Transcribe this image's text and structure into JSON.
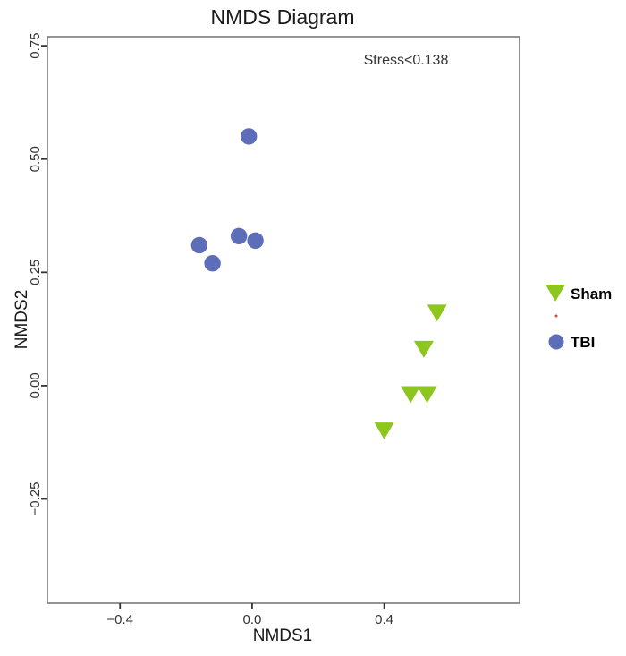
{
  "chart_data": {
    "type": "scatter",
    "title": "NMDS Diagram",
    "xlabel": "NMDS1",
    "ylabel": "NMDS2",
    "annotation": "Stress<0.138",
    "xlim": [
      -0.62,
      0.81
    ],
    "ylim": [
      -0.48,
      0.77
    ],
    "xticks": [
      -0.4,
      0,
      0.4
    ],
    "xtick_labels": [
      "−0.4",
      "0.0",
      "0.4"
    ],
    "yticks": [
      -0.25,
      0,
      0.25,
      0.5,
      0.75
    ],
    "ytick_labels": [
      "−0.25",
      "0.00",
      "0.25",
      "0.50",
      "0.75"
    ],
    "grid": false,
    "legend_position": "right",
    "series": [
      {
        "name": "Sham",
        "marker": "triangle-down",
        "color": "#8DC71E",
        "points": [
          [
            0.56,
            0.16
          ],
          [
            0.52,
            0.08
          ],
          [
            0.48,
            -0.02
          ],
          [
            0.53,
            -0.02
          ],
          [
            0.4,
            -0.1
          ]
        ]
      },
      {
        "name": "TBI",
        "marker": "circle",
        "color": "#5D6DB8",
        "points": [
          [
            -0.01,
            0.55
          ],
          [
            -0.04,
            0.33
          ],
          [
            0.01,
            0.32
          ],
          [
            -0.16,
            0.31
          ],
          [
            -0.12,
            0.27
          ]
        ]
      }
    ]
  },
  "styles": {
    "plot_border_color": "#7a7a7a",
    "tick_color": "#333333",
    "artifact_dot_color": "#cc4b37"
  }
}
